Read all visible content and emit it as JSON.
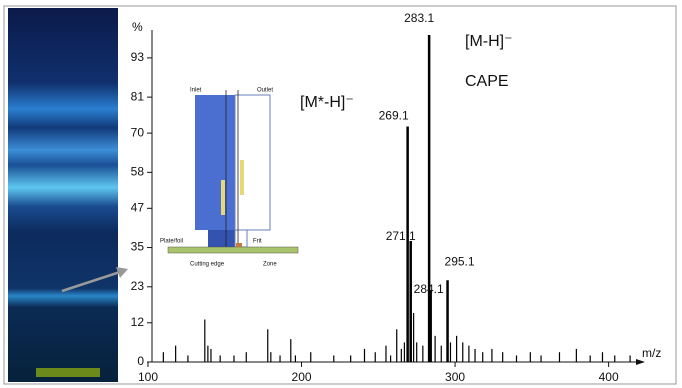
{
  "chart_data": {
    "type": "spectrum",
    "y_label": "%",
    "x_label": "m/z",
    "xlim": [
      100,
      425
    ],
    "xticks": [
      100,
      200,
      300,
      400
    ],
    "ylim": [
      0,
      100
    ],
    "yticks": [
      0,
      12,
      23,
      35,
      47,
      58,
      70,
      81,
      93
    ],
    "series": [
      {
        "color": "#000000",
        "show_labels": true,
        "x": [
          269.1,
          271.1,
          283.1,
          284.1,
          295.1
        ],
        "values": [
          72,
          37,
          100,
          22,
          25
        ]
      },
      {
        "color": "#000000",
        "show_labels": false,
        "x": [
          110,
          118,
          126,
          137,
          139,
          141,
          147,
          156,
          164,
          178,
          180,
          186,
          193,
          196,
          206,
          221,
          232,
          241,
          248,
          255,
          258,
          262,
          265,
          267,
          273,
          275,
          279,
          287,
          291,
          297,
          301,
          305,
          309,
          313,
          318,
          324,
          331,
          340,
          349,
          356,
          368,
          379,
          388,
          396,
          404,
          414
        ],
        "values": [
          3,
          5,
          2,
          13,
          5,
          4,
          2,
          2,
          3,
          10,
          3,
          2,
          7,
          2,
          3,
          2,
          2,
          4,
          3,
          5,
          2,
          10,
          4,
          6,
          15,
          6,
          5,
          8,
          5,
          6,
          8,
          6,
          5,
          4,
          3,
          4,
          3,
          2,
          3,
          2,
          3,
          4,
          2,
          3,
          2,
          2
        ]
      }
    ],
    "annotations": [
      "[M-H]⁻",
      "CAPE",
      "[M*-H]⁻"
    ]
  },
  "inset": {
    "labels": [
      "Inlet",
      "Outlet",
      "Plate/foil",
      "Frit",
      "Cutting edge",
      "Zone"
    ]
  }
}
